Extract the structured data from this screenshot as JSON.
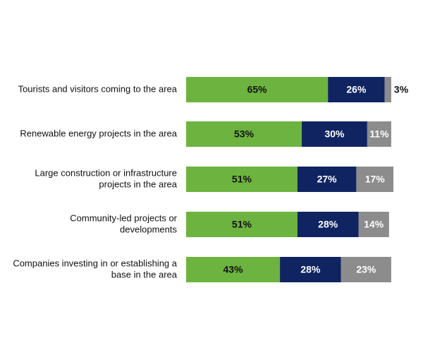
{
  "chart_data": {
    "type": "bar",
    "orientation": "horizontal",
    "stacked": true,
    "title": "",
    "xlabel": "",
    "ylabel": "",
    "xlim": [
      0,
      100
    ],
    "grid": false,
    "legend": "none",
    "categories": [
      [
        "Tourists and visitors coming to the area"
      ],
      [
        "Renewable energy projects in the area"
      ],
      [
        "Large construction or infrastructure",
        "projects in the area"
      ],
      [
        "Community-led projects or",
        "developments"
      ],
      [
        "Companies investing in or establishing a",
        "base in the area"
      ]
    ],
    "series": [
      {
        "color": "#6db33f",
        "label_color": "#111111",
        "values": [
          65,
          53,
          51,
          51,
          43
        ],
        "labels": [
          "65%",
          "53%",
          "51%",
          "51%",
          "43%"
        ]
      },
      {
        "color": "#0f2461",
        "label_color": "#ffffff",
        "values": [
          26,
          30,
          27,
          28,
          28
        ],
        "labels": [
          "26%",
          "30%",
          "27%",
          "28%",
          "28%"
        ]
      },
      {
        "color": "#8c8c8c",
        "label_color": "#ffffff",
        "values": [
          3,
          11,
          17,
          14,
          23
        ],
        "labels": [
          "3%",
          "11%",
          "17%",
          "14%",
          "23%"
        ]
      }
    ]
  }
}
